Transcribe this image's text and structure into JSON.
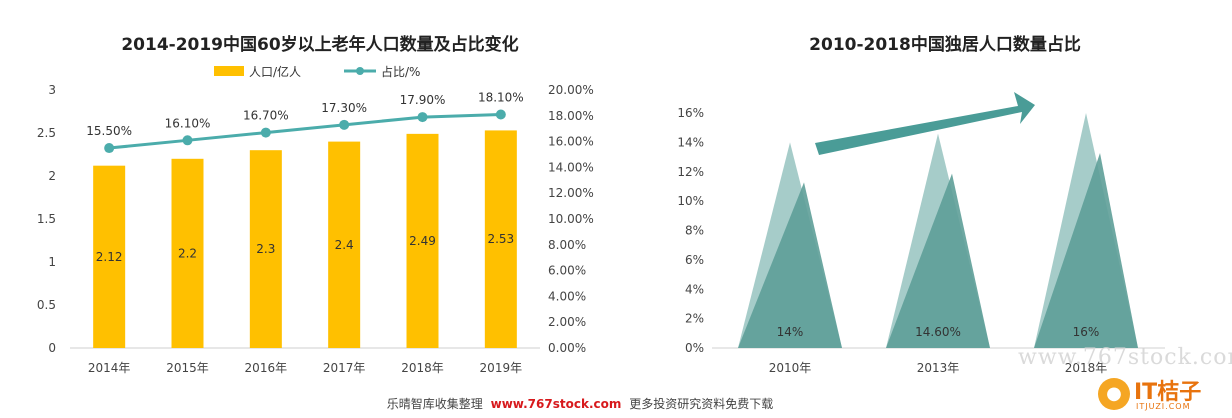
{
  "footer": {
    "prefix": "乐晴智库收集整理",
    "site": "www.767stock.com",
    "suffix": "更多投资研究资料免费下载"
  },
  "watermark": {
    "url": "www.767stock.com",
    "brand_name": "IT桔子",
    "brand_domain": "ITJUZI.COM"
  },
  "colors": {
    "bar": "#FFC000",
    "line": "#4BACAB",
    "teal_dark": "#5E9E98",
    "teal_light": "#9CC7C3",
    "arrow": "#4A9C97"
  },
  "chart_data": [
    {
      "type": "bar",
      "title": "2014-2019中国60岁以上老年人口数量及占比变化",
      "categories": [
        "2014年",
        "2015年",
        "2016年",
        "2017年",
        "2018年",
        "2019年"
      ],
      "series": [
        {
          "name": "人口/亿人",
          "type": "bar",
          "axis": "left",
          "values": [
            2.12,
            2.2,
            2.3,
            2.4,
            2.49,
            2.53
          ],
          "labels": [
            "2.12",
            "2.2",
            "2.3",
            "2.4",
            "2.49",
            "2.53"
          ]
        },
        {
          "name": "占比/%",
          "type": "line",
          "axis": "right",
          "values": [
            15.5,
            16.1,
            16.7,
            17.3,
            17.9,
            18.1
          ],
          "labels": [
            "15.50%",
            "16.10%",
            "16.70%",
            "17.30%",
            "17.90%",
            "18.10%"
          ]
        }
      ],
      "ylim": [
        0,
        3
      ],
      "yticks": [
        "0",
        "0.5",
        "1",
        "1.5",
        "2",
        "2.5",
        "3"
      ],
      "y2lim": [
        0,
        20
      ],
      "y2ticks": [
        "0.00%",
        "2.00%",
        "4.00%",
        "6.00%",
        "8.00%",
        "10.00%",
        "12.00%",
        "14.00%",
        "16.00%",
        "18.00%",
        "20.00%"
      ],
      "legend": "top",
      "grid": false
    },
    {
      "type": "bar",
      "shape": "triangle",
      "title": "2010-2018中国独居人口数量占比",
      "categories": [
        "2010年",
        "2013年",
        "2018年"
      ],
      "values": [
        14,
        14.6,
        16
      ],
      "labels": [
        "14%",
        "14.60%",
        "16%"
      ],
      "ylim": [
        0,
        16
      ],
      "yticks": [
        "0%",
        "2%",
        "4%",
        "6%",
        "8%",
        "10%",
        "12%",
        "14%",
        "16%"
      ],
      "grid": false,
      "decoration": "upward arrow"
    }
  ]
}
